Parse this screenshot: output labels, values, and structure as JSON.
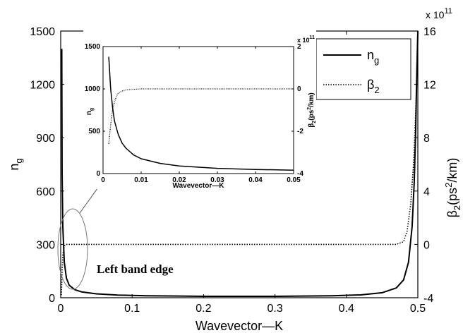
{
  "chart_data": [
    {
      "type": "line",
      "title": "",
      "xlabel": "Wavevector—K",
      "ylabel": "n_g",
      "y2label": "β_2(ps^2/km)",
      "xlim": [
        0,
        0.5
      ],
      "ylim": [
        0,
        1500
      ],
      "y2lim": [
        -400000000000.0,
        1600000000000.0
      ],
      "x_ticks": [
        0,
        0.1,
        0.2,
        0.3,
        0.4,
        0.5
      ],
      "x_tick_labels": [
        "0",
        "0.1",
        "0.2",
        "0.3",
        "0.4",
        "0.5"
      ],
      "y_ticks": [
        0,
        300,
        600,
        900,
        1200,
        1500
      ],
      "y_tick_labels": [
        "0",
        "300",
        "600",
        "900",
        "1200",
        "1500"
      ],
      "y2_ticks": [
        -4,
        0,
        4,
        8,
        12,
        16
      ],
      "y2_tick_labels": [
        "-4",
        "0",
        "4",
        "8",
        "12",
        "16"
      ],
      "y2_multiplier": "x 10",
      "y2_exponent": "11",
      "grid": false,
      "legend_position": "top-right",
      "legend": [
        {
          "name": "n",
          "sub": "g",
          "style": "solid"
        },
        {
          "name": "β",
          "sub": "2",
          "style": "dotted"
        }
      ],
      "series": [
        {
          "name": "n_g",
          "axis": "left",
          "style": "solid",
          "x": [
            0.0015,
            0.002,
            0.003,
            0.005,
            0.008,
            0.012,
            0.02,
            0.03,
            0.05,
            0.08,
            0.12,
            0.2,
            0.3,
            0.38,
            0.42,
            0.45,
            0.47,
            0.48,
            0.487,
            0.492,
            0.495,
            0.497,
            0.4985,
            0.5
          ],
          "y": [
            1400,
            700,
            400,
            200,
            110,
            70,
            45,
            32,
            22,
            15,
            11,
            8,
            8,
            11,
            16,
            28,
            55,
            100,
            200,
            400,
            650,
            950,
            1250,
            1500
          ]
        },
        {
          "name": "β_2",
          "axis": "right",
          "style": "dotted",
          "x": [
            0.001,
            0.0015,
            0.002,
            0.003,
            0.005,
            0.008,
            0.012,
            0.02,
            0.1,
            0.3,
            0.47,
            0.48,
            0.485,
            0.49,
            0.494,
            0.497,
            0.499,
            0.5
          ],
          "y": [
            -380000000000.0,
            -300000000000.0,
            -200000000000.0,
            -80000000000.0,
            -10000000000.0,
            0,
            0,
            0,
            0,
            0,
            0,
            20000000000.0,
            100000000000.0,
            300000000000.0,
            600000000000.0,
            1000000000000.0,
            1400000000000.0,
            1600000000000.0
          ]
        }
      ],
      "annotations": [
        "Left band edge"
      ]
    },
    {
      "type": "line",
      "title": "",
      "xlabel": "Wavevector—K",
      "ylabel": "n_g",
      "y2label": "β_2(ps^2/km)",
      "xlim": [
        0,
        0.05
      ],
      "ylim": [
        0,
        1500
      ],
      "y2lim": [
        -400000000000.0,
        200000000000.0
      ],
      "x_ticks": [
        0,
        0.01,
        0.02,
        0.03,
        0.04,
        0.05
      ],
      "x_tick_labels": [
        "0",
        "0.01",
        "0.02",
        "0.03",
        "0.04",
        "0.05"
      ],
      "y_ticks": [
        0,
        500,
        1000,
        1500
      ],
      "y_tick_labels": [
        "0",
        "500",
        "1000",
        "1500"
      ],
      "y2_ticks": [
        -4,
        -2,
        0,
        2
      ],
      "y2_tick_labels": [
        "-4",
        "-2",
        "0",
        "2"
      ],
      "y2_multiplier": "x 10",
      "y2_exponent": "11",
      "grid": false,
      "series": [
        {
          "name": "n_g",
          "axis": "left",
          "style": "solid",
          "x": [
            0.0015,
            0.002,
            0.0025,
            0.003,
            0.004,
            0.005,
            0.006,
            0.008,
            0.01,
            0.015,
            0.02,
            0.03,
            0.04,
            0.05
          ],
          "y": [
            1380,
            1000,
            780,
            620,
            460,
            360,
            300,
            220,
            175,
            120,
            90,
            62,
            48,
            40
          ]
        },
        {
          "name": "β_2",
          "axis": "right",
          "style": "dotted",
          "x": [
            0.0015,
            0.002,
            0.0025,
            0.003,
            0.0035,
            0.004,
            0.005,
            0.006,
            0.008,
            0.01,
            0.05
          ],
          "y": [
            -260000000000.0,
            -170000000000.0,
            -100000000000.0,
            -60000000000.0,
            -35000000000.0,
            -20000000000.0,
            -10000000000.0,
            -5000000000.0,
            -2000000000.0,
            0,
            0
          ]
        }
      ]
    }
  ]
}
